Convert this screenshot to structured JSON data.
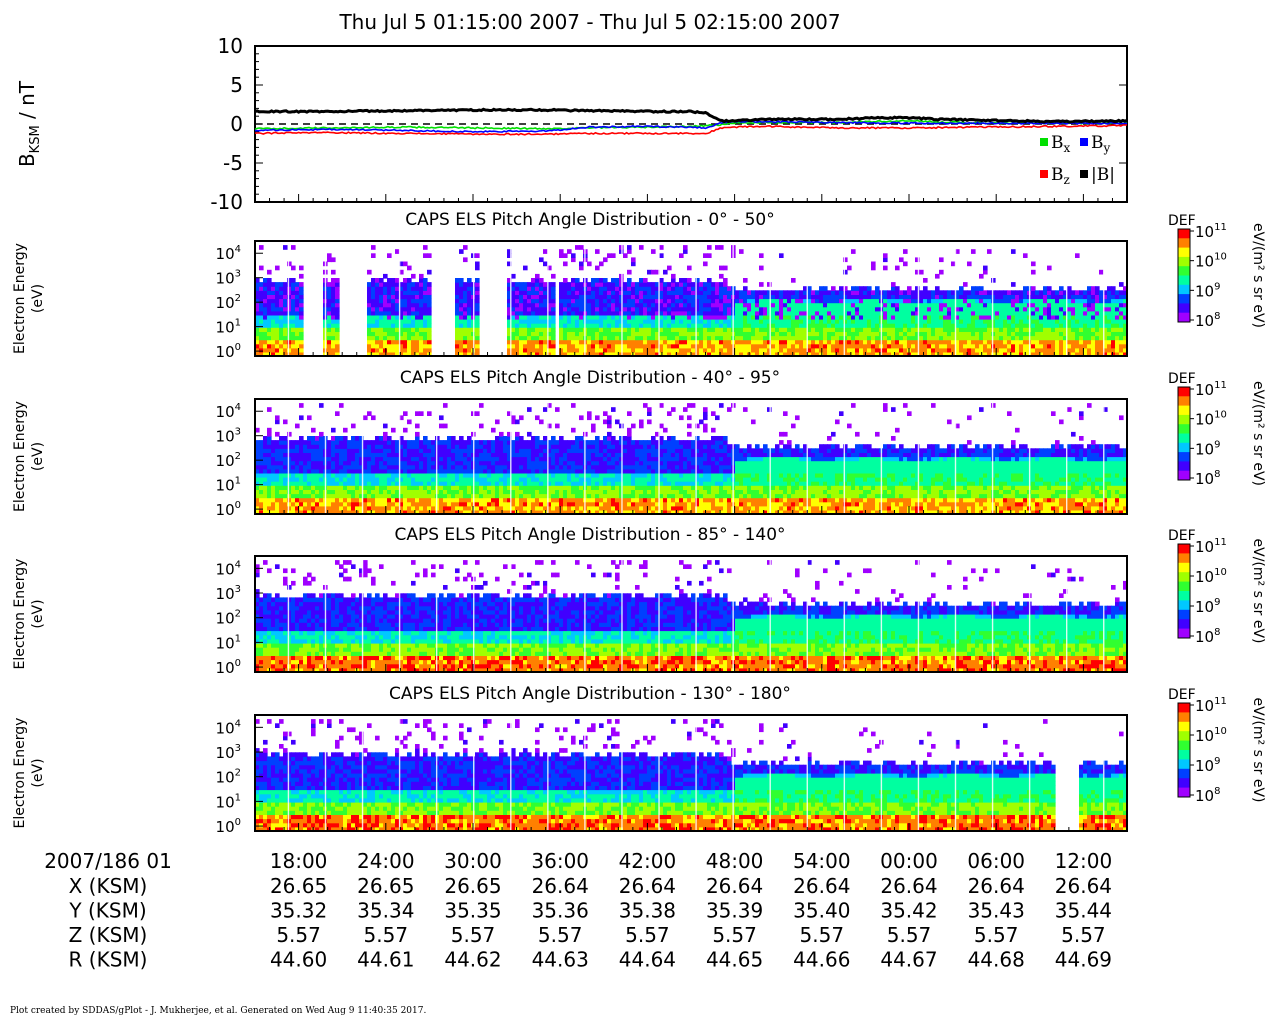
{
  "figure_title": "Thu Jul 5 01:15:00 2007 - Thu Jul 5 02:15:00 2007",
  "footer": "Plot created by SDDAS/gPlot - J. Mukherjee, et al.  Generated on Wed Aug 9 11:40:35 2017.",
  "colors": {
    "bx": "#00e000",
    "by": "#0000ff",
    "bz": "#ff0000",
    "bmag": "#000000",
    "colormap": [
      "#a000ff",
      "#4000ff",
      "#0040ff",
      "#00c8ff",
      "#00ffa0",
      "#30ff30",
      "#a0ff00",
      "#ffff00",
      "#ff8000",
      "#ff0000"
    ]
  },
  "chart_data": [
    {
      "type": "line",
      "ylabel_main": "B",
      "ylabel_sub": "KSM",
      "ylabel_unit": " / nT",
      "ylim": [
        -10,
        10
      ],
      "yticks": [
        "10",
        "5",
        "0",
        "-5",
        "-10"
      ],
      "xlim": [
        15,
        75
      ],
      "zero_line": "dashed",
      "legend_placement": "bottom-right",
      "series": [
        {
          "name": "B",
          "sub": "x",
          "key": "bx",
          "x": [
            15,
            20,
            25,
            30,
            35,
            38,
            42,
            45,
            46,
            47,
            48,
            50,
            55,
            60,
            65,
            70,
            75
          ],
          "values": [
            -0.6,
            -0.5,
            -0.4,
            -0.5,
            -0.6,
            -0.5,
            -0.4,
            -0.3,
            -0.2,
            -0.1,
            0.1,
            0.2,
            0.2,
            0.4,
            0.1,
            0.1,
            0.1
          ]
        },
        {
          "name": "B",
          "sub": "y",
          "key": "by",
          "x": [
            15,
            20,
            25,
            30,
            35,
            38,
            42,
            45,
            46,
            47,
            48,
            50,
            55,
            60,
            65,
            70,
            75
          ],
          "values": [
            -0.8,
            -0.7,
            -0.8,
            -1.0,
            -0.9,
            -0.4,
            -0.3,
            -0.4,
            -0.5,
            0.1,
            0.3,
            0.3,
            0.2,
            0.1,
            0.1,
            0.1,
            0.1
          ]
        },
        {
          "name": "B",
          "sub": "z",
          "key": "bz",
          "x": [
            15,
            20,
            25,
            30,
            35,
            38,
            42,
            45,
            46,
            47,
            48,
            50,
            55,
            60,
            65,
            70,
            75
          ],
          "values": [
            -1.2,
            -1.1,
            -1.2,
            -1.3,
            -1.3,
            -1.2,
            -1.2,
            -1.2,
            -1.3,
            -0.5,
            -0.4,
            -0.3,
            -0.5,
            -0.5,
            -0.4,
            -0.3,
            -0.2
          ]
        },
        {
          "name": "|B|",
          "sub": "",
          "key": "bmag",
          "x": [
            15,
            20,
            25,
            30,
            35,
            38,
            42,
            45,
            46,
            47,
            48,
            50,
            55,
            58,
            60,
            62,
            65,
            70,
            75
          ],
          "values": [
            1.6,
            1.6,
            1.7,
            1.8,
            1.8,
            1.7,
            1.6,
            1.6,
            1.4,
            0.4,
            0.4,
            0.6,
            0.6,
            0.8,
            0.8,
            0.6,
            0.5,
            0.3,
            0.4
          ]
        }
      ]
    },
    {
      "type": "heatmap",
      "title": "CAPS ELS Pitch Angle Distribution - 0° - 50°",
      "ylabel_line1": "Electron Energy",
      "ylabel_line2": "(eV)",
      "yticks": [
        "10",
        "10",
        "10",
        "10",
        "10"
      ],
      "ytick_exponents": [
        "4",
        "3",
        "2",
        "1",
        "0"
      ],
      "ylim_log10": [
        -0.2,
        4.5
      ],
      "xlim": [
        15,
        75
      ],
      "colorbar_label": "DEF",
      "colorbar_unit": "eV/(m² s sr eV)",
      "colorbar_ticks": [
        "10",
        "10",
        "10",
        "10"
      ],
      "colorbar_exponents": [
        "11",
        "10",
        "9",
        "8"
      ],
      "data_gaps": [
        [
          18.3,
          19.7
        ],
        [
          20.9,
          22.8
        ],
        [
          27.0,
          28.7
        ],
        [
          30.4,
          32.4
        ],
        [
          35.6,
          36.0
        ],
        [
          36.4,
          36.6
        ]
      ]
    },
    {
      "type": "heatmap",
      "title": "CAPS ELS Pitch Angle Distribution - 40° - 95°",
      "ylabel_line1": "Electron Energy",
      "ylabel_line2": "(eV)",
      "yticks": [
        "10",
        "10",
        "10",
        "10",
        "10"
      ],
      "ytick_exponents": [
        "4",
        "3",
        "2",
        "1",
        "0"
      ],
      "ylim_log10": [
        -0.2,
        4.5
      ],
      "xlim": [
        15,
        75
      ],
      "colorbar_label": "DEF",
      "colorbar_unit": "eV/(m² s sr eV)",
      "colorbar_ticks": [
        "10",
        "10",
        "10",
        "10"
      ],
      "colorbar_exponents": [
        "11",
        "10",
        "9",
        "8"
      ],
      "data_gaps": []
    },
    {
      "type": "heatmap",
      "title": "CAPS ELS Pitch Angle Distribution - 85° - 140°",
      "ylabel_line1": "Electron Energy",
      "ylabel_line2": "(eV)",
      "yticks": [
        "10",
        "10",
        "10",
        "10",
        "10"
      ],
      "ytick_exponents": [
        "4",
        "3",
        "2",
        "1",
        "0"
      ],
      "ylim_log10": [
        -0.2,
        4.5
      ],
      "xlim": [
        15,
        75
      ],
      "colorbar_label": "DEF",
      "colorbar_unit": "eV/(m² s sr eV)",
      "colorbar_ticks": [
        "10",
        "10",
        "10",
        "10"
      ],
      "colorbar_exponents": [
        "11",
        "10",
        "9",
        "8"
      ],
      "data_gaps": []
    },
    {
      "type": "heatmap",
      "title": "CAPS ELS Pitch Angle Distribution - 130° - 180°",
      "ylabel_line1": "Electron Energy",
      "ylabel_line2": "(eV)",
      "yticks": [
        "10",
        "10",
        "10",
        "10",
        "10"
      ],
      "ytick_exponents": [
        "4",
        "3",
        "2",
        "1",
        "0"
      ],
      "ylim_log10": [
        -0.2,
        4.5
      ],
      "xlim": [
        15,
        75
      ],
      "colorbar_label": "DEF",
      "colorbar_unit": "eV/(m² s sr eV)",
      "colorbar_ticks": [
        "10",
        "10",
        "10",
        "10"
      ],
      "colorbar_exponents": [
        "11",
        "10",
        "9",
        "8"
      ],
      "data_gaps": [
        [
          70.0,
          71.8
        ]
      ]
    }
  ],
  "x_axis": {
    "xlim": [
      15,
      75
    ],
    "tick_positions": [
      18,
      24,
      30,
      36,
      42,
      48,
      54,
      60,
      66,
      72
    ],
    "date_label": "2007/186 01",
    "tick_labels": [
      "18:00",
      "24:00",
      "30:00",
      "36:00",
      "42:00",
      "48:00",
      "54:00",
      "00:00",
      "06:00",
      "12:00"
    ],
    "ephemeris": [
      {
        "label": "X (KSM)",
        "values": [
          "26.65",
          "26.65",
          "26.65",
          "26.64",
          "26.64",
          "26.64",
          "26.64",
          "26.64",
          "26.64",
          "26.64"
        ]
      },
      {
        "label": "Y (KSM)",
        "values": [
          "35.32",
          "35.34",
          "35.35",
          "35.36",
          "35.38",
          "35.39",
          "35.40",
          "35.42",
          "35.43",
          "35.44"
        ]
      },
      {
        "label": "Z (KSM)",
        "values": [
          "5.57",
          "5.57",
          "5.57",
          "5.57",
          "5.57",
          "5.57",
          "5.57",
          "5.57",
          "5.57",
          "5.57"
        ]
      },
      {
        "label": "R (KSM)",
        "values": [
          "44.60",
          "44.61",
          "44.62",
          "44.63",
          "44.64",
          "44.65",
          "44.66",
          "44.67",
          "44.68",
          "44.69"
        ]
      }
    ]
  }
}
